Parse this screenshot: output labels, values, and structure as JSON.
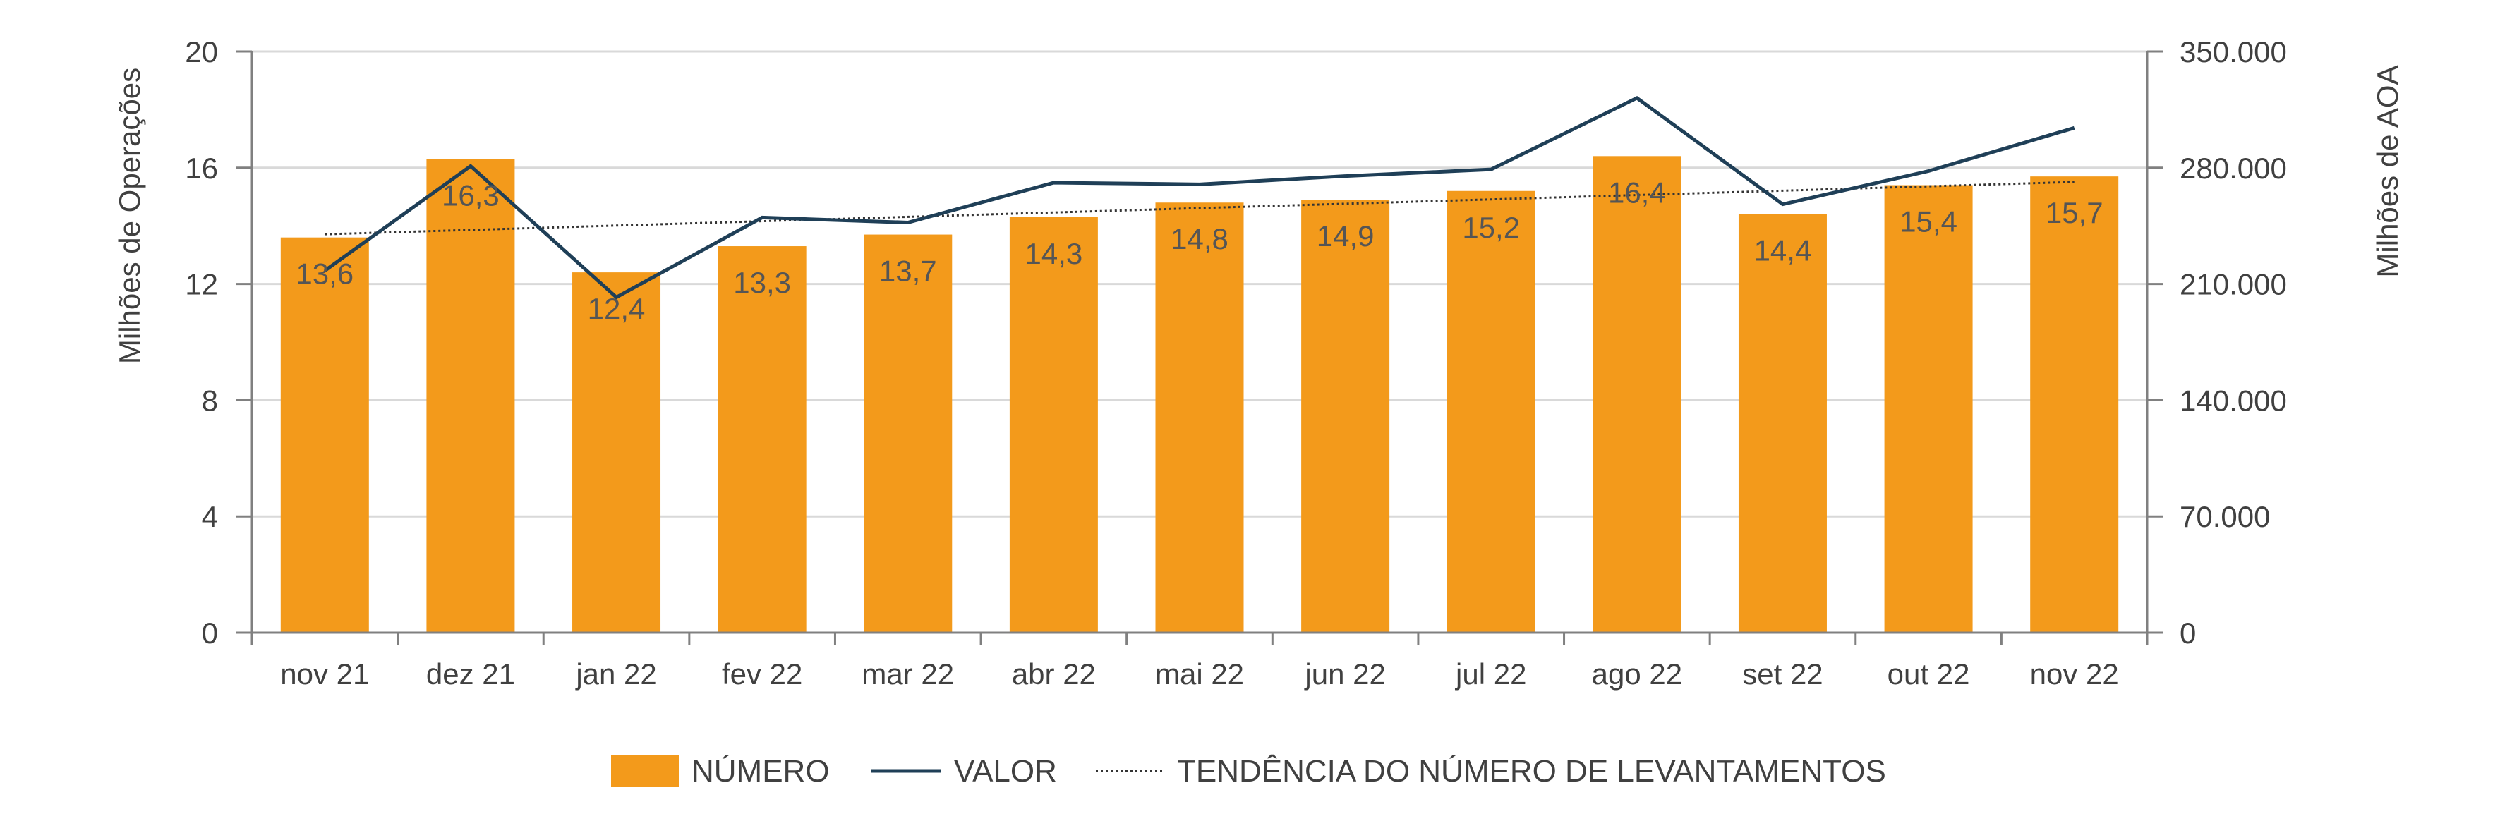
{
  "chart_data": {
    "type": "bar",
    "categories": [
      "nov 21",
      "dez 21",
      "jan 22",
      "fev 22",
      "mar 22",
      "abr 22",
      "mai 22",
      "jun 22",
      "jul 22",
      "ago 22",
      "set 22",
      "out 22",
      "nov 22"
    ],
    "series": [
      {
        "name": "NÚMERO",
        "type": "bar",
        "axis": "left",
        "values": [
          13.6,
          16.3,
          12.4,
          13.3,
          13.7,
          14.3,
          14.8,
          14.9,
          15.2,
          16.4,
          14.4,
          15.4,
          15.7
        ],
        "labels": [
          "13,6",
          "16,3",
          "12,4",
          "13,3",
          "13,7",
          "14,3",
          "14,8",
          "14,9",
          "15,2",
          "16,4",
          "14,4",
          "15,4",
          "15,7"
        ],
        "color": "#F39A1B"
      },
      {
        "name": "VALOR",
        "type": "line",
        "axis": "right",
        "values": [
          218000,
          281000,
          202000,
          250000,
          247000,
          271000,
          270000,
          275000,
          279000,
          322000,
          258000,
          278000,
          304000
        ],
        "color": "#1F3F57"
      },
      {
        "name": "TENDÊNCIA DO NÚMERO DE LEVANTAMENTOS",
        "type": "trendline",
        "axis": "left",
        "values": [
          13.71,
          13.86,
          14.01,
          14.16,
          14.31,
          14.46,
          14.61,
          14.76,
          14.91,
          15.06,
          15.21,
          15.36,
          15.51
        ],
        "color": "#333333"
      }
    ],
    "y_left": {
      "label": "Milhões de Operações",
      "ylim": [
        0,
        20
      ],
      "ticks": [
        "0",
        "4",
        "8",
        "12",
        "16",
        "20"
      ],
      "tick_values": [
        0,
        4,
        8,
        12,
        16,
        20
      ]
    },
    "y_right": {
      "label": "Milhões de AOA",
      "ylim": [
        0,
        350000
      ],
      "ticks": [
        "0",
        "70.000",
        "140.000",
        "210.000",
        "280.000",
        "350.000"
      ],
      "tick_values": [
        0,
        70000,
        140000,
        210000,
        280000,
        350000
      ]
    },
    "grid": true,
    "legend_position": "bottom",
    "gridline_color": "#D9D9D9",
    "axis_color": "#808080"
  }
}
